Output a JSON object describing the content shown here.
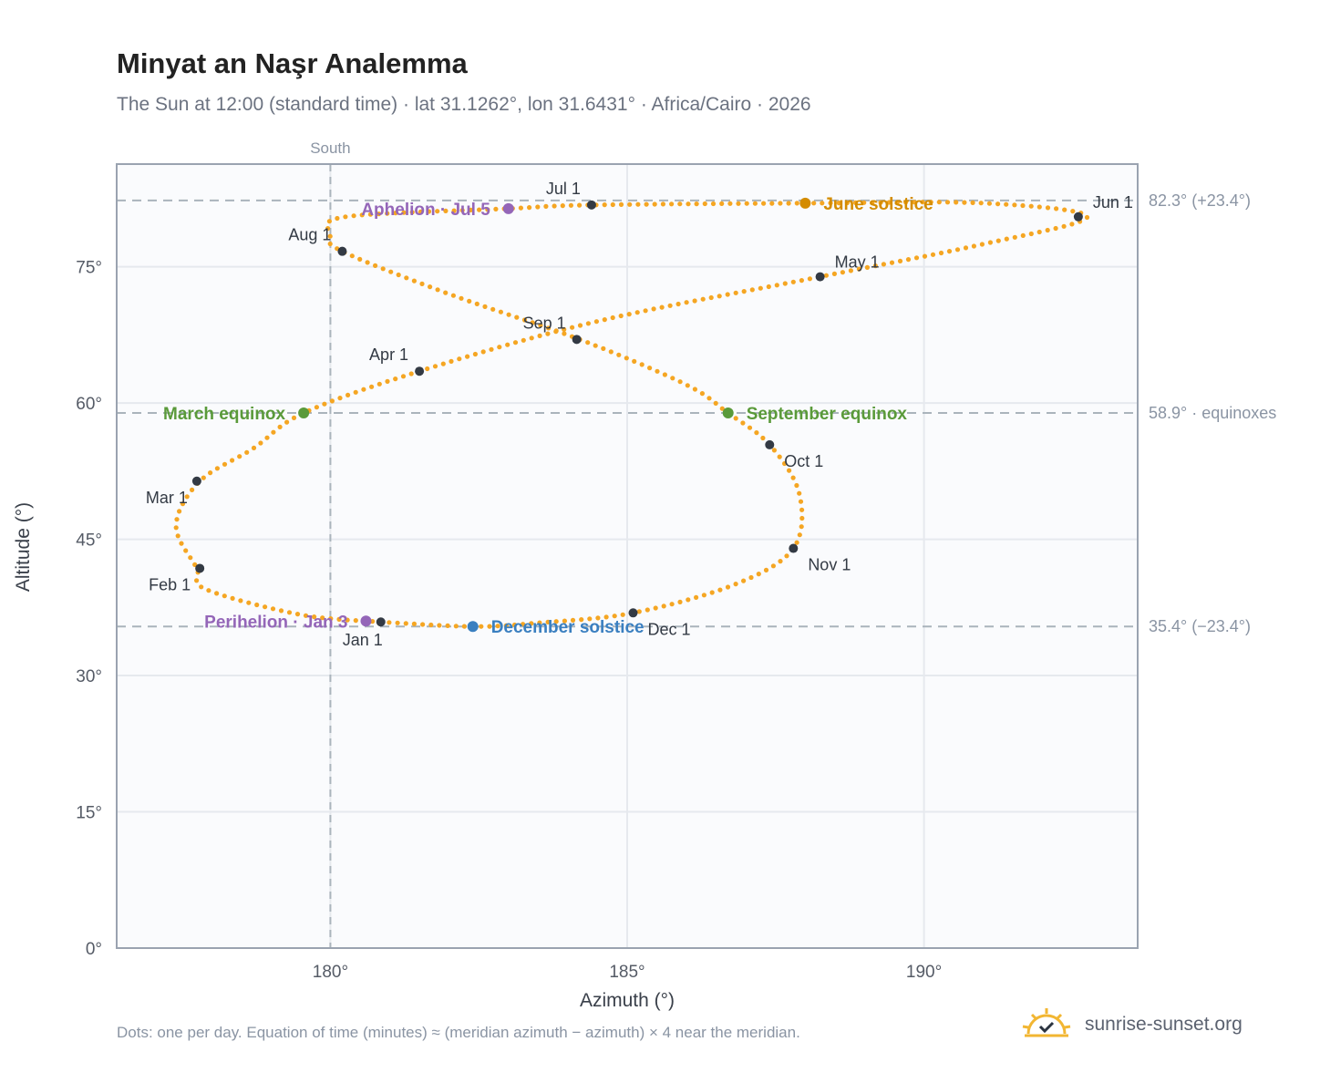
{
  "title": "Minyat an Naşr Analemma",
  "subtitle": "The Sun at 12:00 (standard time) · lat 31.1262°, lon 31.6431° · Africa/Cairo · 2026",
  "footnote": "Dots: one per day. Equation of time (minutes) ≈ (meridian azimuth − azimuth) × 4 near the meridian.",
  "brand": {
    "name": "sunrise-sunset.org",
    "icon": "sun-check-icon"
  },
  "colors": {
    "path": "#f5a623",
    "month": "#333a44",
    "solstice": "#d48c00",
    "equinox": "#5a9a3a",
    "apsis": "#9466b8",
    "december": "#3a7fc0",
    "grid": "#e6e9ee",
    "frame": "#9aa3b0",
    "plot_bg": "#fafbfd"
  },
  "chart_data": {
    "type": "scatter",
    "xlabel": "Azimuth (°)",
    "ylabel": "Altitude (°)",
    "xlim": [
      176.4,
      193.6
    ],
    "ylim": [
      0,
      86.3
    ],
    "xticks": [
      {
        "v": 180,
        "label": "180°"
      },
      {
        "v": 185,
        "label": "185°"
      },
      {
        "v": 190,
        "label": "190°"
      }
    ],
    "yticks": [
      {
        "v": 0,
        "label": "0°"
      },
      {
        "v": 15,
        "label": "15°"
      },
      {
        "v": 30,
        "label": "30°"
      },
      {
        "v": 45,
        "label": "45°"
      },
      {
        "v": 60,
        "label": "60°"
      },
      {
        "v": 75,
        "label": "75°"
      }
    ],
    "grid": true,
    "south_line": {
      "x": 180,
      "label": "South"
    },
    "reference_lines": [
      {
        "y": 82.3,
        "label": "82.3° (+23.4°)"
      },
      {
        "y": 58.9,
        "label": "58.9° · equinoxes"
      },
      {
        "y": 35.4,
        "label": "35.4° (−23.4°)"
      }
    ],
    "path_knots": [
      [
        180.85,
        35.9
      ],
      [
        179.5,
        36.7
      ],
      [
        177.9,
        39.5
      ],
      [
        177.75,
        41.8
      ],
      [
        177.4,
        46.5
      ],
      [
        177.8,
        51.4
      ],
      [
        178.7,
        55.0
      ],
      [
        179.55,
        58.9
      ],
      [
        181.5,
        63.5
      ],
      [
        184.5,
        69.0
      ],
      [
        188.25,
        73.9
      ],
      [
        191.0,
        77.5
      ],
      [
        192.75,
        80.5
      ],
      [
        191.0,
        82.0
      ],
      [
        188.1,
        82.0
      ],
      [
        184.4,
        81.8
      ],
      [
        183.0,
        81.4
      ],
      [
        180.25,
        80.5
      ],
      [
        180.0,
        78.5
      ],
      [
        180.2,
        76.7
      ],
      [
        182.0,
        72.0
      ],
      [
        184.2,
        67.0
      ],
      [
        186.0,
        62.0
      ],
      [
        186.7,
        58.9
      ],
      [
        187.4,
        55.4
      ],
      [
        187.9,
        50.0
      ],
      [
        187.8,
        44.0
      ],
      [
        186.8,
        40.0
      ],
      [
        185.1,
        36.9
      ],
      [
        183.5,
        35.8
      ],
      [
        182.4,
        35.4
      ],
      [
        180.85,
        35.9
      ]
    ],
    "path_dots": 365,
    "month_points": [
      {
        "label": "Jan 1",
        "x": 180.85,
        "y": 35.9,
        "pos": "below"
      },
      {
        "label": "Feb 1",
        "x": 177.8,
        "y": 41.8,
        "pos": "below-left"
      },
      {
        "label": "Mar 1",
        "x": 177.75,
        "y": 51.4,
        "pos": "below-left"
      },
      {
        "label": "Apr 1",
        "x": 181.5,
        "y": 63.5,
        "pos": "above-left"
      },
      {
        "label": "May 1",
        "x": 188.25,
        "y": 73.9,
        "pos": "above-right"
      },
      {
        "label": "Jun 1",
        "x": 192.6,
        "y": 80.5,
        "pos": "above-right"
      },
      {
        "label": "Jul 1",
        "x": 184.4,
        "y": 81.8,
        "pos": "above-left"
      },
      {
        "label": "Aug 1",
        "x": 180.2,
        "y": 76.7,
        "pos": "above-left"
      },
      {
        "label": "Sep 1",
        "x": 184.15,
        "y": 67.0,
        "pos": "above-left"
      },
      {
        "label": "Oct 1",
        "x": 187.4,
        "y": 55.4,
        "pos": "below-right"
      },
      {
        "label": "Nov 1",
        "x": 187.8,
        "y": 44.0,
        "pos": "below-right"
      },
      {
        "label": "Dec 1",
        "x": 185.1,
        "y": 36.9,
        "pos": "below-right"
      }
    ],
    "events": [
      {
        "label": "June solstice",
        "x": 188.0,
        "y": 82.0,
        "color": "#d48c00",
        "side": "right"
      },
      {
        "label": "Aphelion · Jul 5",
        "x": 183.0,
        "y": 81.4,
        "color": "#9466b8",
        "side": "left"
      },
      {
        "label": "March equinox",
        "x": 179.55,
        "y": 58.9,
        "color": "#5a9a3a",
        "side": "left"
      },
      {
        "label": "September equinox",
        "x": 186.7,
        "y": 58.9,
        "color": "#5a9a3a",
        "side": "right"
      },
      {
        "label": "Perihelion · Jan 3",
        "x": 180.6,
        "y": 36.0,
        "color": "#9466b8",
        "side": "left"
      },
      {
        "label": "December solstice",
        "x": 182.4,
        "y": 35.4,
        "color": "#3a7fc0",
        "side": "right"
      }
    ]
  }
}
